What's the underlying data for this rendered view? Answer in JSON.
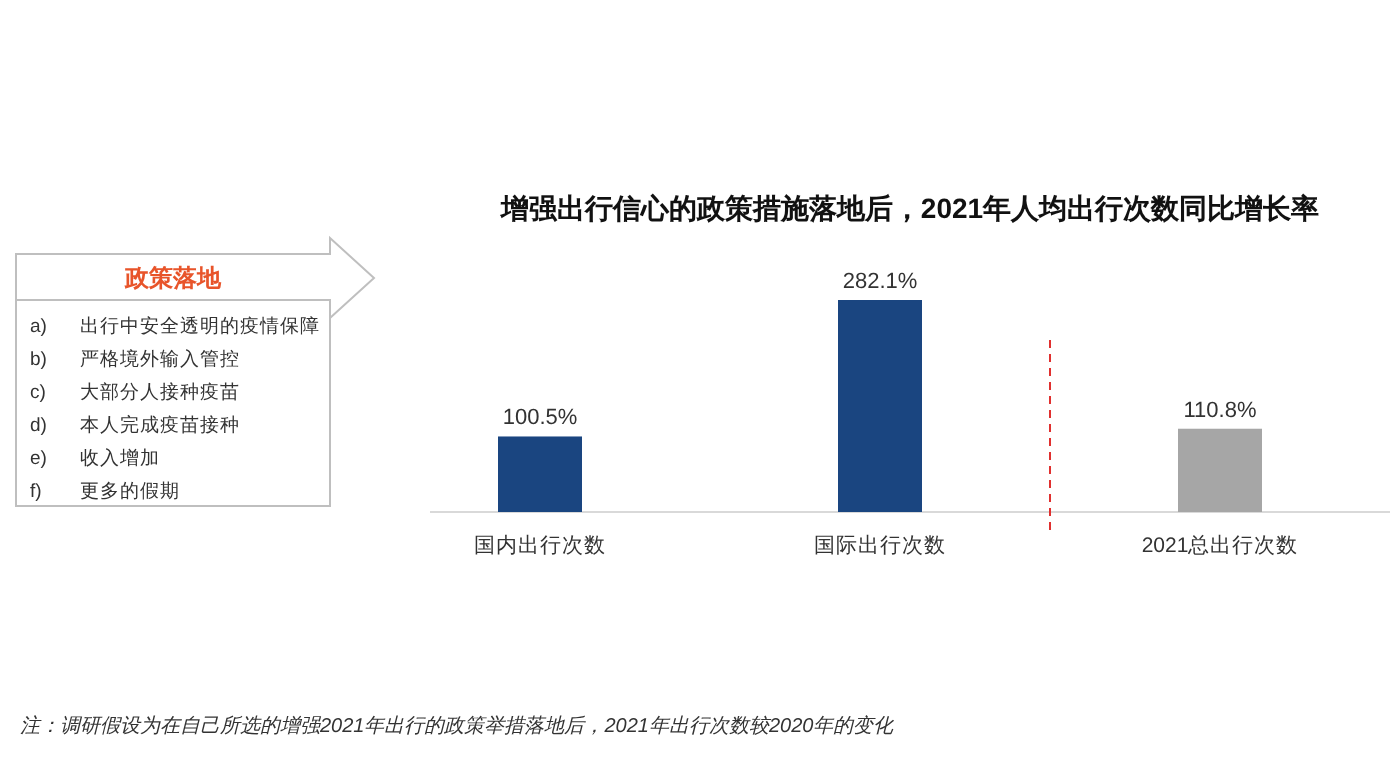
{
  "chart_data": [
    {
      "type": "other",
      "title": "政策落地",
      "annotations": [
        "a) 出行中安全透明的疫情保障",
        "b) 严格境外输入管控",
        "c) 大部分人接种疫苗",
        "d) 本人完成疫苗接种",
        "e) 收入增加",
        "f) 更多的假期"
      ]
    },
    {
      "type": "bar",
      "title": "增强出行信心的政策措施落地后，2021年人均出行次数同比增长率",
      "categories": [
        "国内出行次数",
        "国际出行次数",
        "2021总出行次数"
      ],
      "values": [
        100.5,
        282.1,
        110.8
      ],
      "colors": [
        "#1a4580",
        "#1a4580",
        "#a6a6a6"
      ],
      "value_labels": [
        "100.5%",
        "282.1%",
        "110.8%"
      ],
      "annotations": [
        "注：调研假设为在自己所选的增强2021年出行的政策举措落地后，2021年出行次数较2020年的变化"
      ]
    }
  ]
}
